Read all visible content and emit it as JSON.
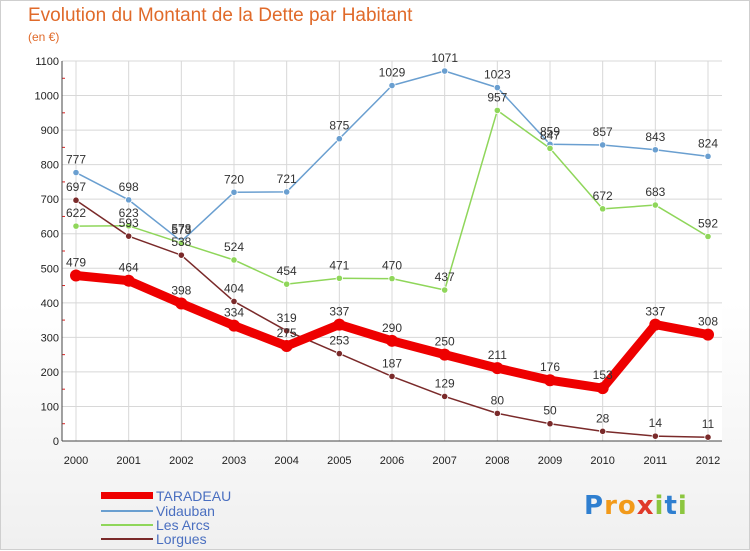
{
  "header": {
    "title": "Evolution du Montant de la Dette par Habitant",
    "subtitle": "(en €)"
  },
  "colors": {
    "title": "#e06a2a",
    "grid": "#d8d8d8",
    "axis": "#444444",
    "legend_text": "#4a6fc0"
  },
  "chart_data": {
    "type": "line",
    "title": "Evolution du Montant de la Dette par Habitant",
    "ylabel": "(en €)",
    "xlabel": "",
    "ylim": [
      0,
      1100
    ],
    "yticks": [
      0,
      100,
      200,
      300,
      400,
      500,
      600,
      700,
      800,
      900,
      1000,
      1100
    ],
    "categories": [
      "2000",
      "2001",
      "2002",
      "2003",
      "2004",
      "2005",
      "2006",
      "2007",
      "2008",
      "2009",
      "2010",
      "2011",
      "2012"
    ],
    "grid": true,
    "legend_position": "bottom-left",
    "series": [
      {
        "name": "TARADEAU",
        "color": "#ee0000",
        "emphasis": true,
        "values": [
          479,
          464,
          398,
          334,
          275,
          337,
          290,
          250,
          211,
          176,
          153,
          337,
          308
        ]
      },
      {
        "name": "Vidauban",
        "color": "#6a9fd0",
        "values": [
          777,
          698,
          578,
          720,
          721,
          875,
          1029,
          1071,
          1023,
          859,
          857,
          843,
          824
        ]
      },
      {
        "name": "Les Arcs",
        "color": "#8fd65a",
        "values": [
          622,
          623,
          573,
          524,
          454,
          471,
          470,
          437,
          957,
          847,
          672,
          683,
          592
        ]
      },
      {
        "name": "Lorgues",
        "color": "#7a2a2a",
        "values": [
          697,
          593,
          538,
          404,
          319,
          253,
          187,
          129,
          80,
          50,
          28,
          14,
          11
        ]
      }
    ]
  },
  "legend": {
    "items": [
      "TARADEAU",
      "Vidauban",
      "Les Arcs",
      "Lorgues"
    ]
  },
  "logo": {
    "letters": [
      "P",
      "r",
      "o",
      "x",
      "i",
      "t",
      "i"
    ],
    "colors": [
      "#2f7fd0",
      "#f29a1a",
      "#f29a1a",
      "#e03a2a",
      "#8cc63f",
      "#2f7fd0",
      "#8cc63f"
    ]
  }
}
